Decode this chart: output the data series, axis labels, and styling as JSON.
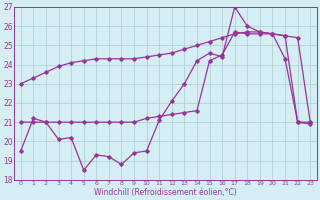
{
  "xlabel": "Windchill (Refroidissement éolien,°C)",
  "x": [
    0,
    1,
    2,
    3,
    4,
    5,
    6,
    7,
    8,
    9,
    10,
    11,
    12,
    13,
    14,
    15,
    16,
    17,
    18,
    19,
    20,
    21,
    22,
    23
  ],
  "line_top": [
    23.0,
    23.3,
    23.6,
    23.9,
    24.1,
    24.2,
    24.3,
    24.3,
    24.3,
    24.3,
    24.4,
    24.5,
    24.6,
    24.8,
    25.0,
    25.2,
    25.4,
    25.6,
    25.7,
    25.7,
    25.6,
    25.5,
    25.4,
    21.0
  ],
  "line_mid": [
    21.0,
    21.0,
    21.0,
    21.0,
    21.0,
    21.0,
    21.0,
    21.0,
    21.0,
    21.0,
    21.2,
    21.3,
    21.4,
    21.5,
    21.6,
    24.2,
    24.5,
    25.7,
    25.6,
    25.6,
    25.6,
    25.5,
    21.0,
    21.0
  ],
  "line_low": [
    19.5,
    21.2,
    21.0,
    20.1,
    20.2,
    18.5,
    19.3,
    19.2,
    18.8,
    19.4,
    19.5,
    21.1,
    22.1,
    23.0,
    24.2,
    24.6,
    24.4,
    27.0,
    26.0,
    25.7,
    25.6,
    24.3,
    21.0,
    20.9
  ],
  "ylim": [
    18,
    27
  ],
  "xlim_min": -0.5,
  "xlim_max": 23.5,
  "yticks": [
    18,
    19,
    20,
    21,
    22,
    23,
    24,
    25,
    26,
    27
  ],
  "xticks": [
    0,
    1,
    2,
    3,
    4,
    5,
    6,
    7,
    8,
    9,
    10,
    11,
    12,
    13,
    14,
    15,
    16,
    17,
    18,
    19,
    20,
    21,
    22,
    23
  ],
  "line_color": "#993399",
  "bg_color": "#d4eef4",
  "grid_color": "#aacccc"
}
